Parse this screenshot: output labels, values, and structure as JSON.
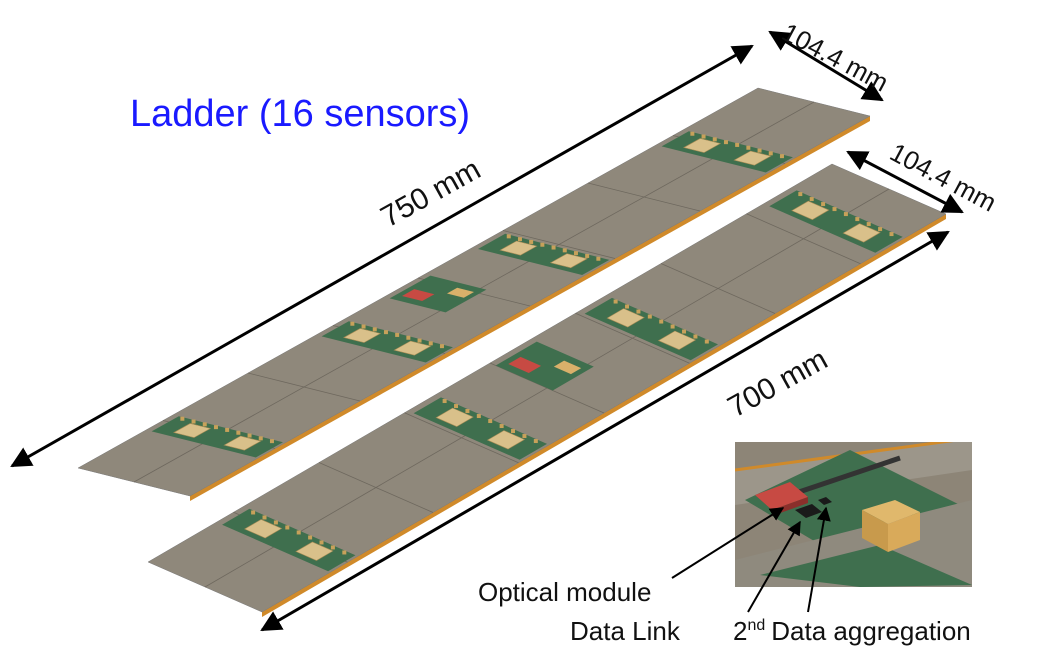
{
  "title": "Ladder (16 sensors)",
  "dimensions": {
    "ladder_1_length": "750 mm",
    "ladder_1_width": "104.4 mm",
    "ladder_2_length": "700 mm",
    "ladder_2_width": "104.4 mm"
  },
  "callouts": [
    {
      "label": "Optical module"
    },
    {
      "label": "Data Link"
    },
    {
      "prefix": "2",
      "superscript": "nd",
      "label": "Data aggregation"
    }
  ]
}
